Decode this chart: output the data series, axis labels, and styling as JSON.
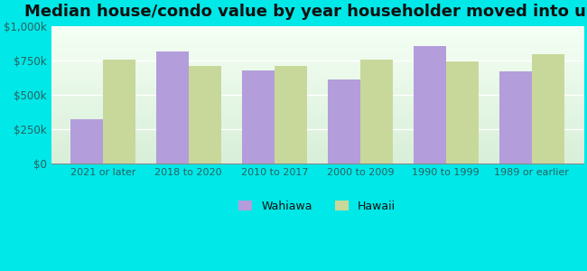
{
  "title": "Median house/condo value by year householder moved into unit",
  "categories": [
    "2021 or later",
    "2018 to 2020",
    "2010 to 2017",
    "2000 to 2009",
    "1990 to 1999",
    "1989 or earlier"
  ],
  "wahiawa_values": [
    325000,
    820000,
    680000,
    615000,
    860000,
    670000
  ],
  "hawaii_values": [
    760000,
    710000,
    715000,
    755000,
    745000,
    800000
  ],
  "wahiawa_color": "#b39ddb",
  "hawaii_color": "#c8d89a",
  "background_color": "#00e8e8",
  "plot_bg_top": "#f5fff5",
  "plot_bg_bottom": "#d8efd8",
  "ylim": [
    0,
    1000000
  ],
  "yticks": [
    0,
    250000,
    500000,
    750000,
    1000000
  ],
  "ytick_labels": [
    "$0",
    "$250k",
    "$500k",
    "$750k",
    "$1,000k"
  ],
  "legend_wahiawa": "Wahiawa",
  "legend_hawaii": "Hawaii",
  "bar_width": 0.38,
  "title_fontsize": 13
}
